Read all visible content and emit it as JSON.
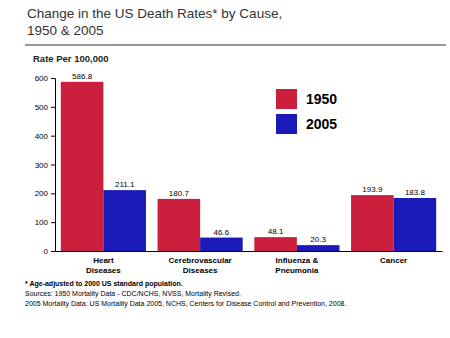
{
  "chart_data": {
    "type": "bar",
    "title": "Change in the US Death Rates* by Cause,\n1950 & 2005",
    "y_label": "Rate Per 100,000",
    "categories": [
      "Heart\nDiseases",
      "Cerebrovascular\nDiseases",
      "Influenza &\nPneumonia",
      "Cancer"
    ],
    "series": [
      {
        "name": "1950",
        "color": "#cc1f3d",
        "values": [
          586.8,
          180.7,
          48.1,
          193.9
        ]
      },
      {
        "name": "2005",
        "color": "#1a1ab8",
        "values": [
          211.1,
          46.6,
          20.3,
          183.8
        ]
      }
    ],
    "ylim": [
      0,
      600
    ],
    "yticks": [
      0,
      100,
      200,
      300,
      400,
      500,
      600
    ],
    "grid": false,
    "legend": "upper right",
    "data_labels": true,
    "annotations": [
      "* Age-adjusted to 2000 US standard population.",
      "Sources: 1950 Mortality Data - CDC/NCHS, NVSS, Mortality Revised.",
      "2005 Mortality Data: US Mortality Data 2005, NCHS, Centers for Disease Control and Prevention, 2008."
    ]
  }
}
